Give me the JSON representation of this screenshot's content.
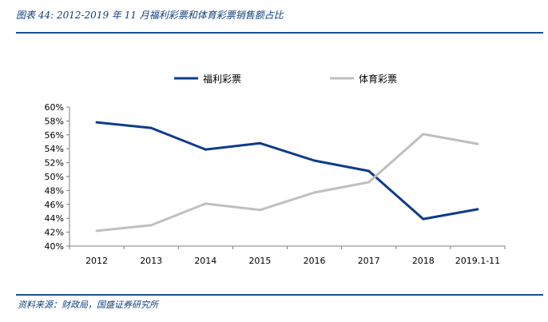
{
  "figure": {
    "title": "图表 44:  2012-2019 年 11 月福利彩票和体育彩票销售额占比",
    "source": "资料来源：财政局，国盛证券研究所"
  },
  "chart_data": {
    "type": "line",
    "title": "",
    "categories": [
      "2012",
      "2013",
      "2014",
      "2015",
      "2016",
      "2017",
      "2018",
      "2019.1-11"
    ],
    "series": [
      {
        "name": "福利彩票",
        "color": "#0d3b8c",
        "values": [
          57.8,
          57.0,
          53.9,
          54.8,
          52.3,
          50.8,
          43.9,
          45.3
        ]
      },
      {
        "name": "体育彩票",
        "color": "#bfbfbf",
        "values": [
          42.2,
          43.0,
          46.1,
          45.2,
          47.7,
          49.2,
          56.1,
          54.7
        ]
      }
    ],
    "y_ticks": [
      "40%",
      "42%",
      "44%",
      "46%",
      "48%",
      "50%",
      "52%",
      "54%",
      "56%",
      "58%",
      "60%"
    ],
    "ylim": [
      40,
      60
    ],
    "y_step": 2,
    "xlabel": "",
    "ylabel": "",
    "legend_position": "top-center",
    "grid": false
  }
}
